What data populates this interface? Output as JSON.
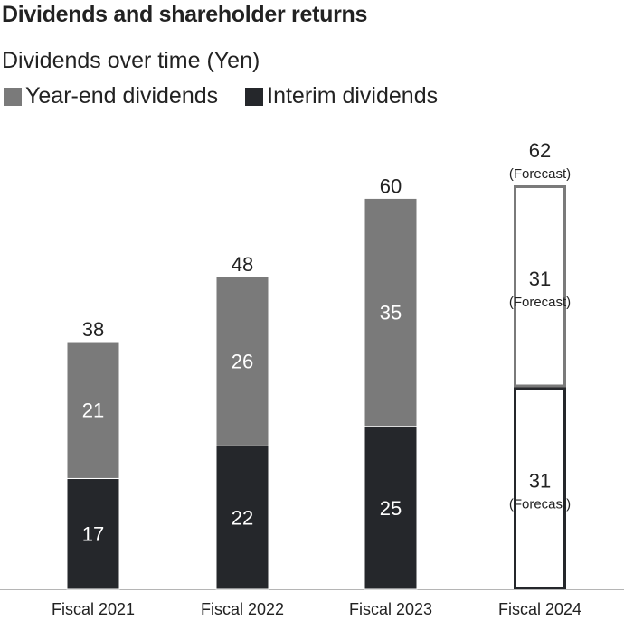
{
  "title": "Dividends and shareholder returns",
  "subtitle": "Dividends over time (Yen)",
  "legend": [
    {
      "label": "Year-end dividends",
      "color": "#7a7a7a"
    },
    {
      "label": "Interim dividends",
      "color": "#25272b"
    }
  ],
  "chart_data": {
    "type": "bar",
    "stacked": true,
    "categories": [
      "Fiscal 2021",
      "Fiscal 2022",
      "Fiscal 2023",
      "Fiscal 2024"
    ],
    "series": [
      {
        "name": "Interim dividends",
        "values": [
          17,
          22,
          25,
          31
        ],
        "color": "#25272b"
      },
      {
        "name": "Year-end dividends",
        "values": [
          21,
          26,
          35,
          31
        ],
        "color": "#7a7a7a"
      }
    ],
    "totals": [
      38,
      48,
      60,
      62
    ],
    "forecast": [
      false,
      false,
      false,
      true
    ],
    "forecast_label": "(Forecast)",
    "ylim": [
      0,
      62
    ]
  }
}
